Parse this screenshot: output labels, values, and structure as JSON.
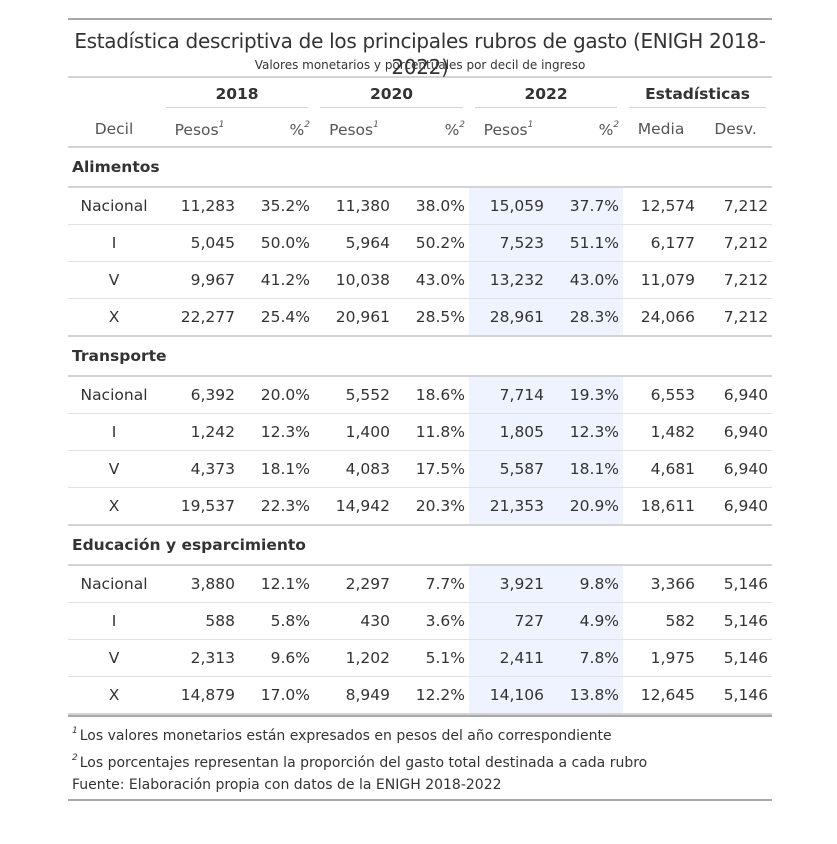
{
  "title": "Estadística descriptiva de los principales rubros de gasto (ENIGH 2018-2022)",
  "subtitle": "Valores monetarios y porcentuales por decil de ingreso",
  "spanners": [
    "2018",
    "2020",
    "2022",
    "Estadísticas"
  ],
  "columns": {
    "decil": "Decil",
    "pesos": "Pesos",
    "pct": "%",
    "media": "Media",
    "desv": "Desv.",
    "mark1": "1",
    "mark2": "2"
  },
  "groups": [
    {
      "name": "Alimentos",
      "rows": [
        [
          "Nacional",
          "11,283",
          "35.2%",
          "11,380",
          "38.0%",
          "15,059",
          "37.7%",
          "12,574",
          "7,212"
        ],
        [
          "I",
          "5,045",
          "50.0%",
          "5,964",
          "50.2%",
          "7,523",
          "51.1%",
          "6,177",
          "7,212"
        ],
        [
          "V",
          "9,967",
          "41.2%",
          "10,038",
          "43.0%",
          "13,232",
          "43.0%",
          "11,079",
          "7,212"
        ],
        [
          "X",
          "22,277",
          "25.4%",
          "20,961",
          "28.5%",
          "28,961",
          "28.3%",
          "24,066",
          "7,212"
        ]
      ]
    },
    {
      "name": "Transporte",
      "rows": [
        [
          "Nacional",
          "6,392",
          "20.0%",
          "5,552",
          "18.6%",
          "7,714",
          "19.3%",
          "6,553",
          "6,940"
        ],
        [
          "I",
          "1,242",
          "12.3%",
          "1,400",
          "11.8%",
          "1,805",
          "12.3%",
          "1,482",
          "6,940"
        ],
        [
          "V",
          "4,373",
          "18.1%",
          "4,083",
          "17.5%",
          "5,587",
          "18.1%",
          "4,681",
          "6,940"
        ],
        [
          "X",
          "19,537",
          "22.3%",
          "14,942",
          "20.3%",
          "21,353",
          "20.9%",
          "18,611",
          "6,940"
        ]
      ]
    },
    {
      "name": "Educación y esparcimiento",
      "rows": [
        [
          "Nacional",
          "3,880",
          "12.1%",
          "2,297",
          "7.7%",
          "3,921",
          "9.8%",
          "3,366",
          "5,146"
        ],
        [
          "I",
          "588",
          "5.8%",
          "430",
          "3.6%",
          "727",
          "4.9%",
          "582",
          "5,146"
        ],
        [
          "V",
          "2,313",
          "9.6%",
          "1,202",
          "5.1%",
          "2,411",
          "7.8%",
          "1,975",
          "5,146"
        ],
        [
          "X",
          "14,879",
          "17.0%",
          "8,949",
          "12.2%",
          "14,106",
          "13.8%",
          "12,645",
          "5,146"
        ]
      ]
    }
  ],
  "notes": [
    {
      "mark": "1",
      "text": "Los valores monetarios están expresados en pesos del año correspondiente"
    },
    {
      "mark": "2",
      "text": "Los porcentajes representan la proporción del gasto total destinada a cada rubro"
    }
  ],
  "source": "Fuente: Elaboración propia con datos de la ENIGH 2018-2022",
  "highlight_color": "#eef3ff"
}
